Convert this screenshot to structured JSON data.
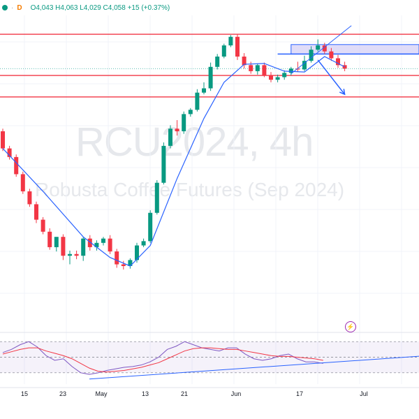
{
  "header": {
    "resolution": "D",
    "ohlc": "O4,043 H4,063 L4,029 C4,058 +15 (+0.37%)",
    "symbol_dot_color": "#089981",
    "icons": [
      "status-dot-icon",
      "daily-resolution-icon"
    ]
  },
  "watermark": {
    "symbol": "RCU2024, 4h",
    "description": "Robusta Coffee Futures (Sep 2024)"
  },
  "x_axis": {
    "labels": [
      "15",
      "23",
      "May",
      "13",
      "21",
      "Jun",
      "17",
      "Jul"
    ]
  },
  "colors": {
    "up": "#089981",
    "down": "#f23645",
    "moving_average": "#2962ff",
    "resistance_lines": "#f23645",
    "drawings": "#2962ff",
    "zone_fill": "#d6d0f5",
    "rsi_line": "#7e57c2",
    "rsi_ma": "#f23645"
  },
  "chart_data": [
    {
      "type": "candlestick",
      "title": "",
      "ohlc_series": [
        [
          285,
          265,
          288,
          262
        ],
        [
          265,
          255,
          268,
          252
        ],
        [
          255,
          235,
          258,
          232
        ],
        [
          235,
          215,
          238,
          212
        ],
        [
          215,
          200,
          218,
          197
        ],
        [
          200,
          182,
          203,
          178
        ],
        [
          182,
          168,
          185,
          165
        ],
        [
          168,
          150,
          172,
          147
        ],
        [
          150,
          162,
          153,
          145
        ],
        [
          162,
          140,
          165,
          135
        ],
        [
          140,
          142,
          146,
          130
        ],
        [
          142,
          140,
          146,
          136
        ],
        [
          140,
          160,
          162,
          134
        ],
        [
          160,
          150,
          164,
          146
        ],
        [
          150,
          155,
          158,
          146
        ],
        [
          155,
          160,
          162,
          152
        ],
        [
          160,
          145,
          164,
          142
        ],
        [
          145,
          130,
          148,
          126
        ],
        [
          130,
          128,
          134,
          124
        ],
        [
          128,
          135,
          137,
          125
        ],
        [
          135,
          152,
          155,
          132
        ],
        [
          152,
          157,
          160,
          150
        ],
        [
          157,
          190,
          193,
          155
        ],
        [
          190,
          225,
          228,
          188
        ],
        [
          225,
          268,
          272,
          223
        ],
        [
          268,
          288,
          292,
          265
        ],
        [
          288,
          285,
          298,
          280
        ],
        [
          285,
          305,
          308,
          282
        ],
        [
          305,
          310,
          312,
          302
        ],
        [
          310,
          330,
          334,
          308
        ],
        [
          330,
          335,
          342,
          328
        ],
        [
          335,
          360,
          365,
          332
        ],
        [
          360,
          372,
          375,
          357
        ],
        [
          372,
          385,
          387,
          370
        ],
        [
          385,
          395,
          397,
          383
        ],
        [
          395,
          372,
          398,
          368
        ],
        [
          372,
          362,
          376,
          358
        ],
        [
          362,
          355,
          366,
          352
        ],
        [
          355,
          362,
          364,
          351
        ],
        [
          362,
          350,
          365,
          348
        ],
        [
          350,
          345,
          354,
          342
        ],
        [
          345,
          348,
          351,
          342
        ],
        [
          348,
          353,
          356,
          345
        ],
        [
          353,
          358,
          360,
          350
        ],
        [
          358,
          357,
          366,
          354
        ],
        [
          357,
          367,
          373,
          355
        ],
        [
          367,
          380,
          384,
          365
        ],
        [
          380,
          385,
          392,
          378
        ],
        [
          385,
          378,
          388,
          375
        ],
        [
          378,
          370,
          382,
          367
        ],
        [
          370,
          362,
          374,
          359
        ],
        [
          362,
          358,
          366,
          355
        ]
      ],
      "moving_average": [
        [
          0,
          265
        ],
        [
          6,
          215
        ],
        [
          12,
          162
        ],
        [
          16,
          138
        ],
        [
          19,
          128
        ],
        [
          22,
          152
        ],
        [
          26,
          230
        ],
        [
          30,
          300
        ],
        [
          33,
          342
        ],
        [
          36,
          363
        ],
        [
          39,
          364
        ],
        [
          42,
          355
        ],
        [
          45,
          354
        ],
        [
          48,
          372
        ],
        [
          51,
          360
        ]
      ],
      "horizontal_lines": [
        [
          "level_a",
          398
        ],
        [
          "level_b",
          350
        ],
        [
          "level_c",
          325
        ]
      ],
      "zone": {
        "from_bar": 43,
        "to_bar": 60,
        "high": 386,
        "low": 375
      },
      "trendline": [
        [
          43,
          352
        ],
        [
          52,
          408
        ]
      ],
      "arrow": [
        [
          47,
          368
        ],
        [
          51,
          328
        ]
      ],
      "y_range": [
        80,
        420
      ]
    },
    {
      "type": "line",
      "title": "",
      "series": [
        {
          "values": [
            56,
            60,
            66,
            70,
            63,
            52,
            46,
            48,
            38,
            30,
            28,
            30,
            33,
            35,
            37,
            38,
            40,
            44,
            50,
            60,
            64,
            70,
            66,
            62,
            60,
            58,
            62,
            62,
            54,
            48,
            46,
            48,
            52,
            54,
            48,
            44,
            44,
            42
          ]
        },
        {
          "values": [
            54,
            57,
            60,
            62,
            62,
            58,
            55,
            52,
            48,
            42,
            36,
            32,
            31,
            32,
            33,
            35,
            37,
            40,
            43,
            48,
            53,
            58,
            61,
            62,
            62,
            61,
            60,
            60,
            58,
            56,
            54,
            52,
            51,
            51,
            50,
            49,
            48,
            46
          ]
        }
      ],
      "trendline": [
        [
          10,
          22
        ],
        [
          49,
          52
        ]
      ],
      "y_range": [
        20,
        80
      ]
    }
  ]
}
